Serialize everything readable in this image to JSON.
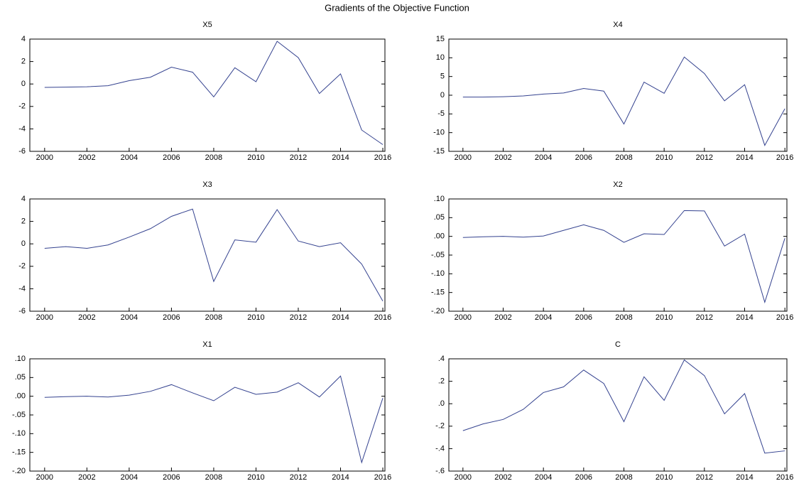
{
  "title": "Gradients of the Objective Function",
  "chart_data": [
    {
      "type": "line",
      "title": "X5",
      "x": [
        2000,
        2001,
        2002,
        2003,
        2004,
        2005,
        2006,
        2007,
        2008,
        2009,
        2010,
        2011,
        2012,
        2013,
        2014,
        2015,
        2016
      ],
      "series": [
        {
          "color": "#34428f",
          "values": [
            -0.3,
            -0.28,
            -0.25,
            -0.15,
            0.3,
            0.6,
            1.5,
            1.05,
            -1.15,
            1.45,
            0.2,
            3.8,
            2.35,
            -0.85,
            0.9,
            -4.1,
            -5.4
          ]
        }
      ],
      "xlim": [
        1999.3,
        2016.1
      ],
      "xticks": [
        2000,
        2002,
        2004,
        2006,
        2008,
        2010,
        2012,
        2014,
        2016
      ],
      "ylim": [
        -6,
        4
      ],
      "yticks": [
        -6,
        -4,
        -2,
        0,
        2,
        4
      ]
    },
    {
      "type": "line",
      "title": "X4",
      "x": [
        2000,
        2001,
        2002,
        2003,
        2004,
        2005,
        2006,
        2007,
        2008,
        2009,
        2010,
        2011,
        2012,
        2013,
        2014,
        2015,
        2016
      ],
      "series": [
        {
          "color": "#34428f",
          "values": [
            -0.5,
            -0.5,
            -0.4,
            -0.2,
            0.3,
            0.6,
            1.8,
            1.1,
            -7.7,
            3.5,
            0.5,
            10.2,
            5.8,
            -1.5,
            2.8,
            -13.4,
            -3.6
          ]
        }
      ],
      "xlim": [
        1999.3,
        2016.1
      ],
      "xticks": [
        2000,
        2002,
        2004,
        2006,
        2008,
        2010,
        2012,
        2014,
        2016
      ],
      "ylim": [
        -15,
        15
      ],
      "yticks": [
        -15,
        -10,
        -5,
        0,
        5,
        10,
        15
      ]
    },
    {
      "type": "line",
      "title": "X3",
      "x": [
        2000,
        2001,
        2002,
        2003,
        2004,
        2005,
        2006,
        2007,
        2008,
        2009,
        2010,
        2011,
        2012,
        2013,
        2014,
        2015,
        2016
      ],
      "series": [
        {
          "color": "#34428f",
          "values": [
            -0.4,
            -0.25,
            -0.4,
            -0.1,
            0.6,
            1.35,
            2.45,
            3.1,
            -3.35,
            0.35,
            0.15,
            3.05,
            0.25,
            -0.25,
            0.1,
            -1.8,
            -5.1
          ]
        }
      ],
      "xlim": [
        1999.3,
        2016.1
      ],
      "xticks": [
        2000,
        2002,
        2004,
        2006,
        2008,
        2010,
        2012,
        2014,
        2016
      ],
      "ylim": [
        -6,
        4
      ],
      "yticks": [
        -6,
        -4,
        -2,
        0,
        2,
        4
      ]
    },
    {
      "type": "line",
      "title": "X2",
      "x": [
        2000,
        2001,
        2002,
        2003,
        2004,
        2005,
        2006,
        2007,
        2008,
        2009,
        2010,
        2011,
        2012,
        2013,
        2014,
        2015,
        2016
      ],
      "series": [
        {
          "color": "#34428f",
          "values": [
            -0.003,
            -0.001,
            0,
            -0.002,
            0.001,
            0.016,
            0.031,
            0.016,
            -0.016,
            0.007,
            0.005,
            0.069,
            0.068,
            -0.026,
            0.006,
            -0.176,
            -0.005
          ]
        }
      ],
      "xlim": [
        1999.3,
        2016.1
      ],
      "xticks": [
        2000,
        2002,
        2004,
        2006,
        2008,
        2010,
        2012,
        2014,
        2016
      ],
      "ylim": [
        -0.2,
        0.1
      ],
      "yticks": [
        {
          "value": -0.2,
          "label": "-.20"
        },
        {
          "value": -0.15,
          "label": "-.15"
        },
        {
          "value": -0.1,
          "label": "-.10"
        },
        {
          "value": -0.05,
          "label": "-.05"
        },
        {
          "value": 0,
          "label": ".00"
        },
        {
          "value": 0.05,
          "label": ".05"
        },
        {
          "value": 0.1,
          "label": ".10"
        }
      ]
    },
    {
      "type": "line",
      "title": "X1",
      "x": [
        2000,
        2001,
        2002,
        2003,
        2004,
        2005,
        2006,
        2007,
        2008,
        2009,
        2010,
        2011,
        2012,
        2013,
        2014,
        2015,
        2016
      ],
      "series": [
        {
          "color": "#34428f",
          "values": [
            -0.003,
            -0.001,
            0,
            -0.002,
            0.003,
            0.013,
            0.031,
            0.009,
            -0.012,
            0.024,
            0.005,
            0.011,
            0.036,
            -0.002,
            0.054,
            -0.177,
            -0.005
          ]
        }
      ],
      "xlim": [
        1999.3,
        2016.1
      ],
      "xticks": [
        2000,
        2002,
        2004,
        2006,
        2008,
        2010,
        2012,
        2014,
        2016
      ],
      "ylim": [
        -0.2,
        0.1
      ],
      "yticks": [
        {
          "value": -0.2,
          "label": "-.20"
        },
        {
          "value": -0.15,
          "label": "-.15"
        },
        {
          "value": -0.1,
          "label": "-.10"
        },
        {
          "value": -0.05,
          "label": "-.05"
        },
        {
          "value": 0,
          "label": ".00"
        },
        {
          "value": 0.05,
          "label": ".05"
        },
        {
          "value": 0.1,
          "label": ".10"
        }
      ]
    },
    {
      "type": "line",
      "title": "C",
      "x": [
        2000,
        2001,
        2002,
        2003,
        2004,
        2005,
        2006,
        2007,
        2008,
        2009,
        2010,
        2011,
        2012,
        2013,
        2014,
        2015,
        2016
      ],
      "series": [
        {
          "color": "#34428f",
          "values": [
            -0.24,
            -0.18,
            -0.14,
            -0.05,
            0.1,
            0.15,
            0.3,
            0.18,
            -0.16,
            0.24,
            0.03,
            0.39,
            0.25,
            -0.09,
            0.09,
            -0.44,
            -0.42
          ]
        }
      ],
      "xlim": [
        1999.3,
        2016.1
      ],
      "xticks": [
        2000,
        2002,
        2004,
        2006,
        2008,
        2010,
        2012,
        2014,
        2016
      ],
      "ylim": [
        -0.6,
        0.4
      ],
      "yticks": [
        {
          "value": -0.6,
          "label": "-.6"
        },
        {
          "value": -0.4,
          "label": "-.4"
        },
        {
          "value": -0.2,
          "label": "-.2"
        },
        {
          "value": 0,
          "label": ".0"
        },
        {
          "value": 0.2,
          "label": ".2"
        },
        {
          "value": 0.4,
          "label": ".4"
        }
      ]
    }
  ]
}
